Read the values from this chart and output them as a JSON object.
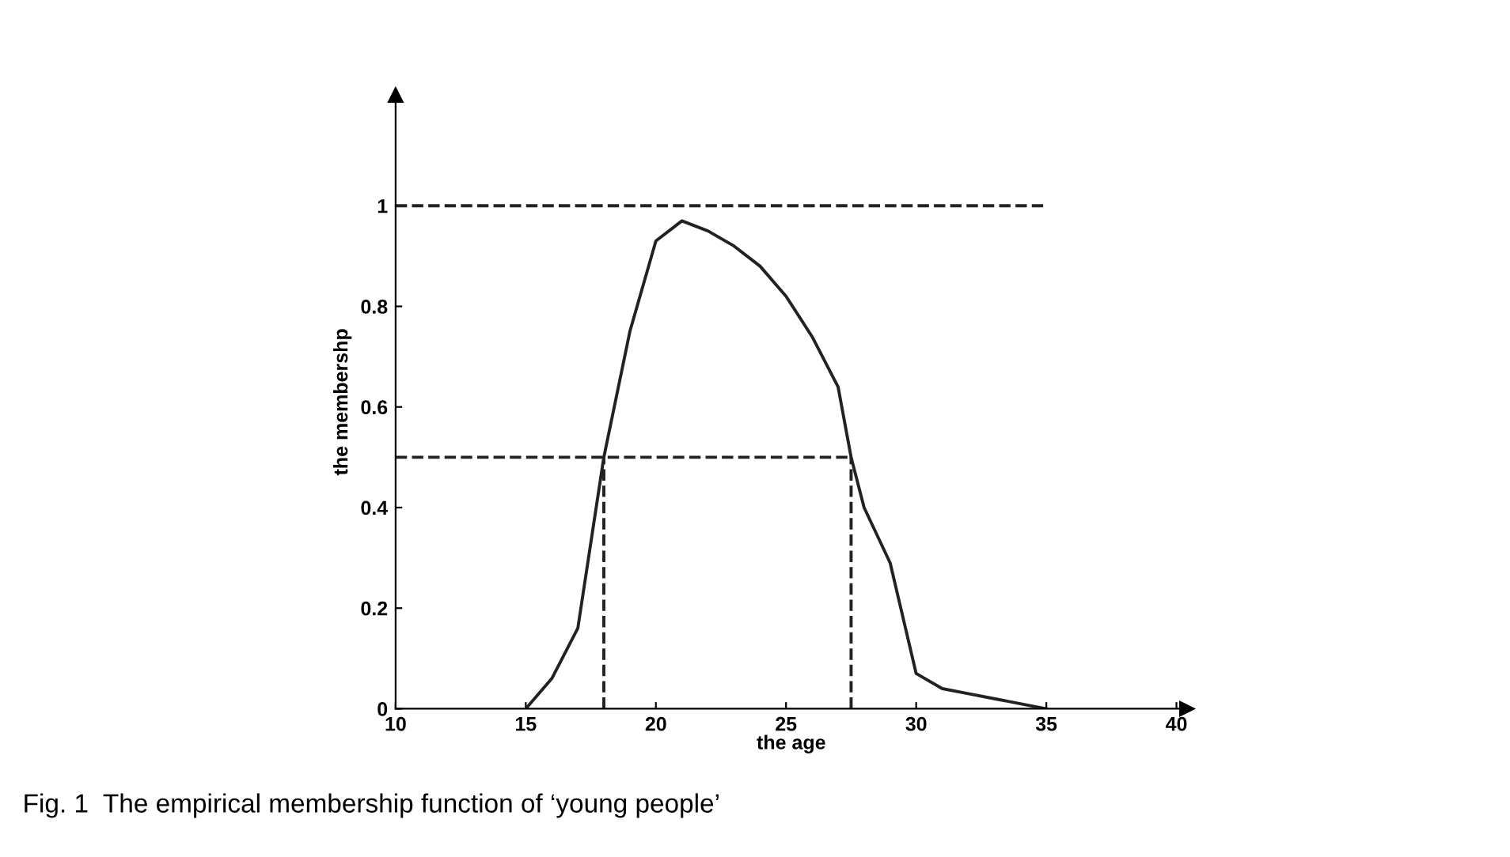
{
  "chart_data": {
    "type": "line",
    "xlabel": "the age",
    "ylabel": "the membershp",
    "xlim": [
      10,
      40.4
    ],
    "ylim": [
      0,
      1.22
    ],
    "xticks": [
      10,
      15,
      20,
      25,
      30,
      35,
      40
    ],
    "yticks": [
      0,
      0.2,
      0.4,
      0.6,
      0.8,
      1
    ],
    "grid": false,
    "legend": false,
    "annotations": [
      "Fig. 1  The empirical membership function of ‘young people’"
    ],
    "series": [
      {
        "color": "#222222",
        "line_style": "solid",
        "x": [
          15,
          16,
          17,
          18,
          19,
          20,
          21,
          22,
          23,
          24,
          25,
          26,
          27,
          27.5,
          28,
          29,
          30,
          31,
          32,
          33,
          34,
          35
        ],
        "values": [
          0,
          0.06,
          0.16,
          0.5,
          0.75,
          0.93,
          0.97,
          0.95,
          0.92,
          0.88,
          0.82,
          0.74,
          0.64,
          0.5,
          0.4,
          0.29,
          0.07,
          0.04,
          0.03,
          0.02,
          0.01,
          0
        ]
      },
      {
        "color": "#222222",
        "line_style": "dashed",
        "x": [
          10,
          35
        ],
        "values": [
          1,
          1
        ]
      },
      {
        "color": "#222222",
        "line_style": "dashed",
        "x": [
          10,
          27.5
        ],
        "values": [
          0.5,
          0.5
        ]
      },
      {
        "color": "#222222",
        "line_style": "dashed",
        "x": [
          18,
          18
        ],
        "values": [
          0,
          0.5
        ]
      },
      {
        "color": "#222222",
        "line_style": "dashed",
        "x": [
          27.5,
          27.5
        ],
        "values": [
          0,
          0.5
        ]
      }
    ]
  }
}
